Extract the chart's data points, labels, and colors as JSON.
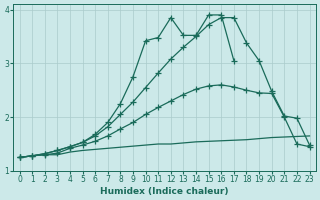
{
  "xlabel": "Humidex (Indice chaleur)",
  "x_values": [
    0,
    1,
    2,
    3,
    4,
    5,
    6,
    7,
    8,
    9,
    10,
    11,
    12,
    13,
    14,
    15,
    16,
    17,
    18,
    19,
    20,
    21,
    22,
    23
  ],
  "line1_nomarker": [
    1.25,
    1.28,
    1.3,
    1.3,
    1.35,
    1.38,
    1.4,
    1.42,
    1.44,
    1.46,
    1.48,
    1.5,
    1.5,
    1.52,
    1.54,
    1.55,
    1.56,
    1.57,
    1.58,
    1.6,
    1.62,
    1.63,
    1.64,
    1.65
  ],
  "line2_marker": [
    1.25,
    1.28,
    1.3,
    1.33,
    1.42,
    1.48,
    1.55,
    1.65,
    1.78,
    1.9,
    2.05,
    2.18,
    2.3,
    2.42,
    2.52,
    2.58,
    2.6,
    2.56,
    2.5,
    2.45,
    2.44,
    2.0,
    1.5,
    1.45
  ],
  "line3_marker": [
    1.25,
    1.28,
    1.32,
    1.38,
    1.45,
    1.53,
    1.65,
    1.82,
    2.05,
    2.28,
    2.55,
    2.82,
    3.08,
    3.3,
    3.5,
    3.72,
    3.85,
    3.85,
    3.38,
    3.05,
    2.48,
    2.02,
    1.98,
    1.48
  ],
  "line4_marker": [
    1.25,
    1.28,
    1.32,
    1.38,
    1.45,
    1.53,
    1.68,
    1.9,
    2.25,
    2.75,
    3.42,
    3.48,
    3.85,
    3.52,
    3.52,
    3.9,
    3.9,
    3.05,
    null,
    null,
    null,
    null,
    null,
    null
  ],
  "bg_color": "#cce9e9",
  "grid_color": "#aacccc",
  "line_color": "#1a6b5a",
  "ylim": [
    1.0,
    4.1
  ],
  "xlim": [
    -0.5,
    23.5
  ],
  "yticks": [
    1,
    2,
    3,
    4
  ],
  "xticks": [
    0,
    1,
    2,
    3,
    4,
    5,
    6,
    7,
    8,
    9,
    10,
    11,
    12,
    13,
    14,
    15,
    16,
    17,
    18,
    19,
    20,
    21,
    22,
    23
  ]
}
